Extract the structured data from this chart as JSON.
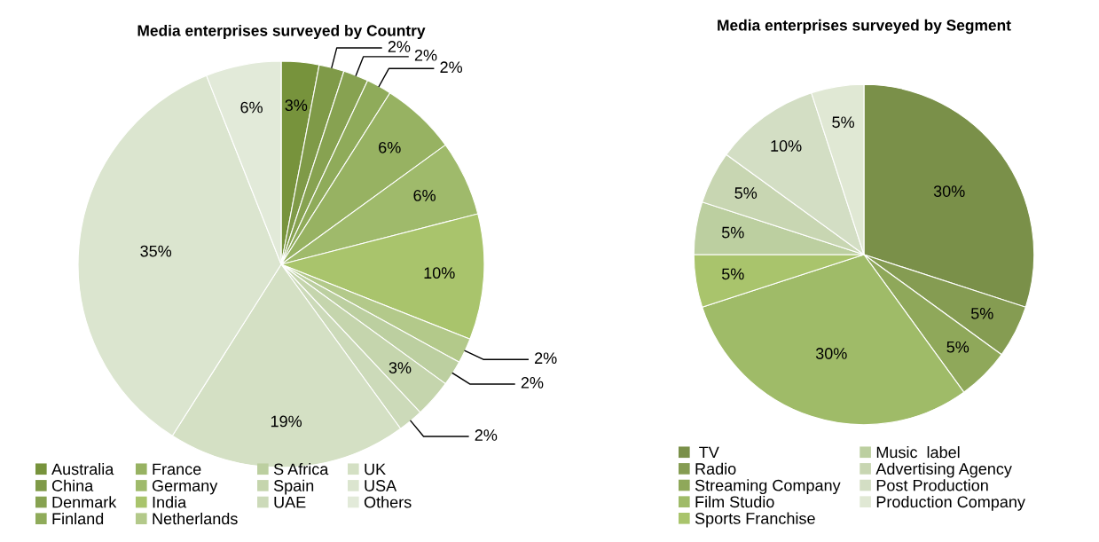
{
  "chart_data": [
    {
      "type": "pie",
      "title": "Media enterprises surveyed by Country",
      "legend": "bottom",
      "categories": [
        "Australia",
        "China",
        "Denmark",
        "Finland",
        "France",
        "Germany",
        "India",
        "Netherlands",
        "S Africa",
        "Spain",
        "UAE",
        "UK",
        "USA",
        "Others"
      ],
      "values": [
        3,
        2,
        2,
        2,
        6,
        6,
        10,
        2,
        2,
        3,
        2,
        19,
        35,
        6
      ],
      "value_labels": [
        "3%",
        "2%",
        "2%",
        "2%",
        "6%",
        "6%",
        "10%",
        "2%",
        "2%",
        "3%",
        "2%",
        "19%",
        "35%",
        "6%"
      ],
      "colors": [
        "#77933c",
        "#7f9a48",
        "#87a251",
        "#8fab5a",
        "#97b262",
        "#9fba6b",
        "#a9c46c",
        "#b3c98a",
        "#bccfa0",
        "#c5d5ad",
        "#ccdab9",
        "#d4e0c4",
        "#dbe5cf",
        "#e2ead9"
      ]
    },
    {
      "type": "pie",
      "title": "Media enterprises surveyed by Segment",
      "legend": "bottom",
      "categories": [
        " TV",
        "Radio",
        "Streaming Company",
        "Film Studio",
        "Sports Franchise",
        "Music  label",
        "Advertising Agency",
        "Post Production",
        "Production Company"
      ],
      "values": [
        30,
        5,
        5,
        30,
        5,
        5,
        5,
        10,
        5
      ],
      "value_labels": [
        "30%",
        "5%",
        "5%",
        "30%",
        "5%",
        "5%",
        "5%",
        "10%",
        "5%"
      ],
      "colors": [
        "#7a9049",
        "#859c52",
        "#8fa85a",
        "#9fbb68",
        "#a9c46c",
        "#bccfa0",
        "#c8d6b2",
        "#d3dec4",
        "#e0e8d4"
      ]
    }
  ]
}
